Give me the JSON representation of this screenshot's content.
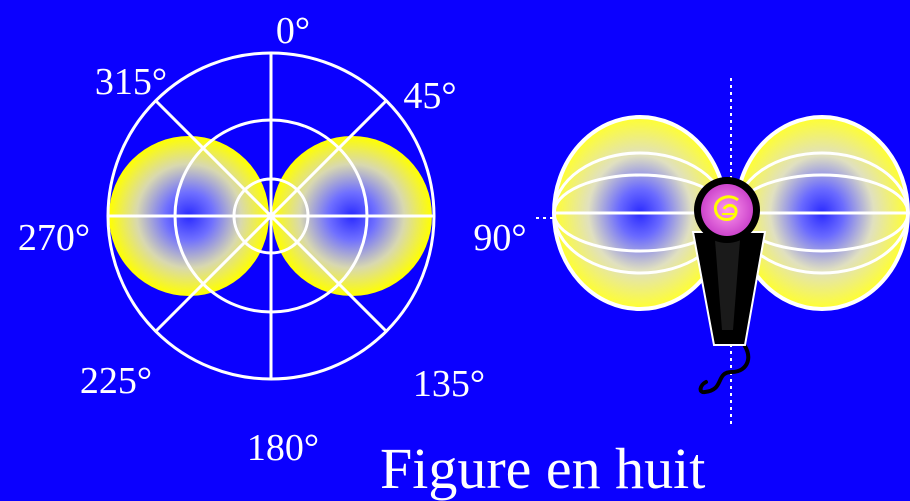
{
  "title": "Figure en huit",
  "angles": {
    "a0": "0°",
    "a45": "45°",
    "a90": "90°",
    "a135": "135°",
    "a180": "180°",
    "a225": "225°",
    "a270": "270°",
    "a315": "315°"
  },
  "colors": {
    "background": "#0B00FF",
    "lobe_edge": "#FFFF00",
    "lobe_center": "#2020FF",
    "lines": "#FFFFFF",
    "mic_body": "#000000",
    "mic_head": "#FF66CC"
  },
  "icons": {
    "microphone": "microphone-icon",
    "pickup_pattern": "figure-eight-pattern"
  }
}
